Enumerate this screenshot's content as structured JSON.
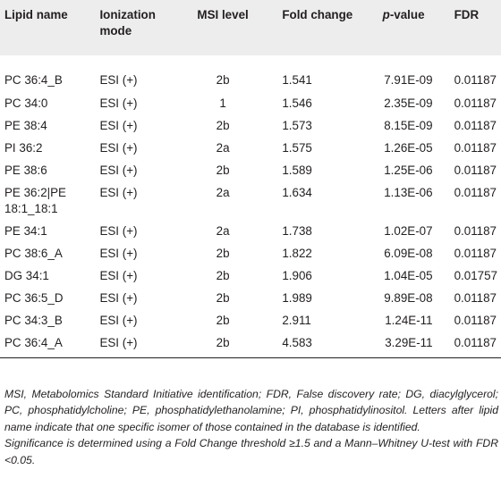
{
  "table": {
    "headers": {
      "lipid_name": "Lipid name",
      "ionization_mode_line1": "Ionization",
      "ionization_mode_line2": "mode",
      "msi_level": "MSI level",
      "fold_change": "Fold change",
      "p_value_italic": "p",
      "p_value_rest": "-value",
      "fdr": "FDR"
    },
    "rows": [
      {
        "lipid": "PC 36:4_B",
        "mode": "ESI (+)",
        "msi": "2b",
        "fold": "1.541",
        "p": "7.91E-09",
        "fdr": "0.01187"
      },
      {
        "lipid": "PC 34:0",
        "mode": "ESI (+)",
        "msi": "1",
        "fold": "1.546",
        "p": "2.35E-09",
        "fdr": "0.01187"
      },
      {
        "lipid": "PE 38:4",
        "mode": "ESI (+)",
        "msi": "2b",
        "fold": "1.573",
        "p": "8.15E-09",
        "fdr": "0.01187"
      },
      {
        "lipid": "PI 36:2",
        "mode": "ESI (+)",
        "msi": "2a",
        "fold": "1.575",
        "p": "1.26E-05",
        "fdr": "0.01187"
      },
      {
        "lipid": "PE 38:6",
        "mode": "ESI (+)",
        "msi": "2b",
        "fold": "1.589",
        "p": "1.25E-06",
        "fdr": "0.01187"
      },
      {
        "lipid": "PE 36:2|PE",
        "lipid_line2": "18:1_18:1",
        "mode": "ESI (+)",
        "msi": "2a",
        "fold": "1.634",
        "p": "1.13E-06",
        "fdr": "0.01187"
      },
      {
        "lipid": "PE 34:1",
        "mode": "ESI (+)",
        "msi": "2a",
        "fold": "1.738",
        "p": "1.02E-07",
        "fdr": "0.01187"
      },
      {
        "lipid": "PC 38:6_A",
        "mode": "ESI (+)",
        "msi": "2b",
        "fold": "1.822",
        "p": "6.09E-08",
        "fdr": "0.01187"
      },
      {
        "lipid": "DG 34:1",
        "mode": "ESI (+)",
        "msi": "2b",
        "fold": "1.906",
        "p": "1.04E-05",
        "fdr": "0.01757"
      },
      {
        "lipid": "PC 36:5_D",
        "mode": "ESI (+)",
        "msi": "2b",
        "fold": "1.989",
        "p": "9.89E-08",
        "fdr": "0.01187"
      },
      {
        "lipid": "PC 34:3_B",
        "mode": "ESI (+)",
        "msi": "2b",
        "fold": "2.911",
        "p": "1.24E-11",
        "fdr": "0.01187"
      },
      {
        "lipid": "PC 36:4_A",
        "mode": "ESI (+)",
        "msi": "2b",
        "fold": "4.583",
        "p": "3.29E-11",
        "fdr": "0.01187"
      }
    ]
  },
  "notes": {
    "abbreviations": "MSI, Metabolomics Standard Initiative identification; FDR, False discovery rate; DG, diacylglycerol; PC, phosphatidylcholine; PE, phosphatidylethanolamine; PI, phosphatidylinositol. Letters after lipid name indicate that one specific isomer of those contained in the database is identified.",
    "significance": "Significance is determined using a Fold Change threshold ≥1.5 and a Mann–Whitney U-test with FDR <0.05."
  }
}
